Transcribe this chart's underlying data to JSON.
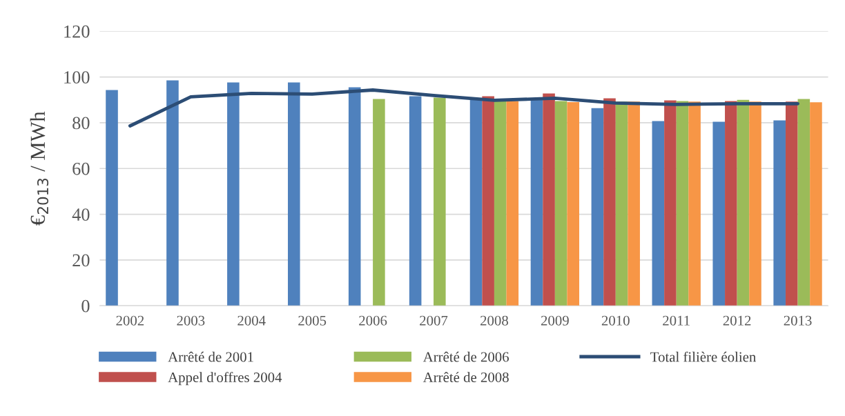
{
  "chart_data": {
    "type": "bar",
    "ylabel": "€$_{2013}$ / MWh",
    "categories": [
      "2002",
      "2003",
      "2004",
      "2005",
      "2006",
      "2007",
      "2008",
      "2009",
      "2010",
      "2011",
      "2012",
      "2013"
    ],
    "series": [
      {
        "name": "Arrêté de 2001",
        "color": "#4f81bd",
        "values": [
          94.3,
          98.5,
          97.6,
          97.6,
          95.5,
          91.6,
          90,
          90,
          86.4,
          80.7,
          80.4,
          81
        ]
      },
      {
        "name": "Appel d'offres 2004",
        "color": "#c0504d",
        "values": [
          null,
          null,
          null,
          null,
          null,
          null,
          91.6,
          92.8,
          90.7,
          89.8,
          89.5,
          89.2
        ]
      },
      {
        "name": "Arrêté de 2006",
        "color": "#9bbb59",
        "values": [
          null,
          null,
          null,
          null,
          90.4,
          91,
          89.5,
          89.5,
          89.2,
          89.5,
          90,
          90.4
        ]
      },
      {
        "name": "Arrêté de 2008",
        "color": "#f79646",
        "values": [
          null,
          null,
          null,
          null,
          null,
          null,
          89.5,
          89,
          89.2,
          89.2,
          89.2,
          88.9
        ]
      },
      {
        "name": "Total filière éolien",
        "type": "line",
        "color": "#2c4d75",
        "values": [
          78.6,
          91.3,
          92.8,
          92.5,
          94.3,
          91.9,
          89.8,
          90.7,
          88.6,
          88,
          88.3,
          88.3
        ]
      }
    ],
    "ylim": [
      0,
      120
    ],
    "yticks": [
      0,
      20,
      40,
      60,
      80,
      100,
      120
    ],
    "grid": "y",
    "legend": "bottom"
  }
}
